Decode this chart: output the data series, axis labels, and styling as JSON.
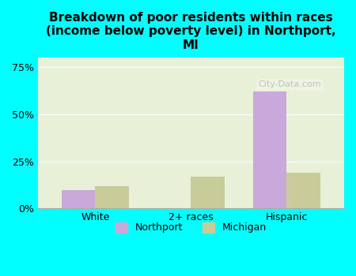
{
  "title": "Breakdown of poor residents within races\n(income below poverty level) in Northport,\nMI",
  "categories": [
    "White",
    "2+ races",
    "Hispanic"
  ],
  "northport_values": [
    10,
    0,
    62
  ],
  "michigan_values": [
    12,
    17,
    19
  ],
  "northport_color": "#c9a8dc",
  "michigan_color": "#c8cc99",
  "background_color": "#00ffff",
  "plot_bg_color": "#e8f0d8",
  "yticks": [
    0,
    25,
    50,
    75
  ],
  "ylim": [
    0,
    80
  ],
  "bar_width": 0.35,
  "legend_labels": [
    "Northport",
    "Michigan"
  ],
  "watermark": "City-Data.com"
}
